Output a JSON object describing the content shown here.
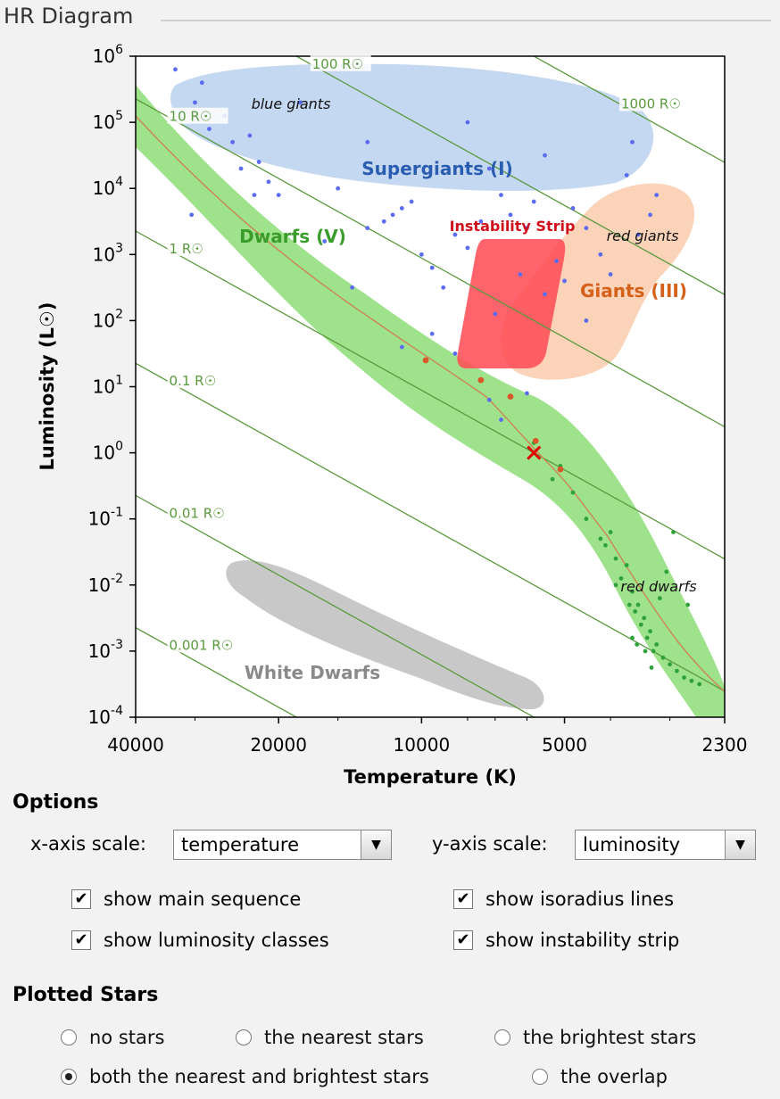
{
  "panel": {
    "title": "HR Diagram"
  },
  "chart_data": {
    "type": "scatter",
    "title": "",
    "xlabel": "Temperature (K)",
    "ylabel": "Luminosity (L☉)",
    "x_scale": "log-reversed",
    "xlim": [
      40000,
      2300
    ],
    "ylim_log10": [
      -4,
      6
    ],
    "x_ticks": [
      "40000",
      "20000",
      "10000",
      "5000",
      "2300"
    ],
    "y_ticks": [
      {
        "base": "10",
        "exp": "-4"
      },
      {
        "base": "10",
        "exp": "-3"
      },
      {
        "base": "10",
        "exp": "-2"
      },
      {
        "base": "10",
        "exp": "-1"
      },
      {
        "base": "10",
        "exp": "0"
      },
      {
        "base": "10",
        "exp": "1"
      },
      {
        "base": "10",
        "exp": "2"
      },
      {
        "base": "10",
        "exp": "3"
      },
      {
        "base": "10",
        "exp": "4"
      },
      {
        "base": "10",
        "exp": "5"
      },
      {
        "base": "10",
        "exp": "6"
      }
    ],
    "region_labels": {
      "supergiants": "Supergiants (I)",
      "giants": "Giants (III)",
      "dwarfs": "Dwarfs (V)",
      "white_dwarfs": "White Dwarfs",
      "instability": "Instability Strip",
      "blue_giants": "blue giants",
      "red_giants": "red giants",
      "red_dwarfs": "red dwarfs"
    },
    "isoradius_labels": [
      "1000 R☉",
      "100 R☉",
      "10 R☉",
      "1 R☉",
      "0.1 R☉",
      "0.01 R☉",
      "0.001 R☉"
    ],
    "isoradius_radii": [
      1000,
      100,
      10,
      1,
      0.1,
      0.01,
      0.001
    ],
    "sun": {
      "temperature": 5800,
      "luminosity": 1
    },
    "brightest_stars": [
      [
        33000,
        5.8
      ],
      [
        30000,
        5.3
      ],
      [
        28000,
        4.9
      ],
      [
        25000,
        4.7
      ],
      [
        23000,
        4.8
      ],
      [
        22000,
        4.4
      ],
      [
        21000,
        4.1
      ],
      [
        20000,
        3.9
      ],
      [
        15000,
        4.0
      ],
      [
        13000,
        3.4
      ],
      [
        12000,
        3.5
      ],
      [
        11500,
        3.6
      ],
      [
        11000,
        3.7
      ],
      [
        10500,
        3.8
      ],
      [
        10000,
        3.0
      ],
      [
        9500,
        2.8
      ],
      [
        9000,
        2.5
      ],
      [
        8500,
        3.3
      ],
      [
        8000,
        3.1
      ],
      [
        7500,
        3.5
      ],
      [
        7000,
        2.1
      ],
      [
        6500,
        3.6
      ],
      [
        6000,
        3.4
      ],
      [
        5800,
        3.8
      ],
      [
        5500,
        4.5
      ],
      [
        5200,
        2.9
      ],
      [
        5000,
        2.6
      ],
      [
        4800,
        3.7
      ],
      [
        4500,
        3.4
      ],
      [
        4200,
        3.0
      ],
      [
        4000,
        2.7
      ],
      [
        3700,
        4.2
      ],
      [
        3500,
        3.3
      ],
      [
        3300,
        3.6
      ],
      [
        3200,
        3.9
      ],
      [
        3600,
        4.7
      ],
      [
        4500,
        2.0
      ],
      [
        5500,
        2.4
      ],
      [
        6200,
        2.7
      ],
      [
        29000,
        5.6
      ],
      [
        26000,
        5.1
      ],
      [
        24000,
        4.3
      ],
      [
        18000,
        5.3
      ],
      [
        13000,
        4.7
      ],
      [
        8000,
        5.0
      ],
      [
        7200,
        4.3
      ],
      [
        6800,
        3.9
      ],
      [
        30500,
        3.6
      ],
      [
        22500,
        3.9
      ],
      [
        14000,
        2.5
      ],
      [
        11000,
        1.6
      ],
      [
        9500,
        1.8
      ],
      [
        8500,
        1.5
      ],
      [
        7200,
        0.8
      ],
      [
        6800,
        0.5
      ],
      [
        6000,
        0.9
      ],
      [
        16000,
        3.2
      ]
    ],
    "nearest_stars": [
      [
        5800,
        0.15
      ],
      [
        5300,
        -0.4
      ],
      [
        4500,
        -1.0
      ],
      [
        4200,
        -1.3
      ],
      [
        3900,
        -1.6
      ],
      [
        3800,
        -1.9
      ],
      [
        3600,
        -2.1
      ],
      [
        3500,
        -2.3
      ],
      [
        3400,
        -2.5
      ],
      [
        3300,
        -2.7
      ],
      [
        3200,
        -2.9
      ],
      [
        3100,
        -3.1
      ],
      [
        3000,
        -3.2
      ],
      [
        2900,
        -3.3
      ],
      [
        2800,
        -3.4
      ],
      [
        2700,
        -3.45
      ],
      [
        2600,
        -3.5
      ],
      [
        3700,
        -1.7
      ],
      [
        3550,
        -2.4
      ],
      [
        3450,
        -2.6
      ],
      [
        3350,
        -2.8
      ],
      [
        3250,
        -3.0
      ],
      [
        3150,
        -2.2
      ],
      [
        2950,
        -1.2
      ],
      [
        3050,
        -1.8
      ],
      [
        3600,
        -2.8
      ],
      [
        3900,
        -2.0
      ],
      [
        4100,
        -1.4
      ],
      [
        4800,
        -0.6
      ],
      [
        5100,
        -0.2
      ],
      [
        4000,
        -1.2
      ],
      [
        3650,
        -2.3
      ],
      [
        3520,
        -2.9
      ],
      [
        3380,
        -3.0
      ],
      [
        3280,
        -3.25
      ],
      [
        2750,
        -2.3
      ]
    ],
    "highlight_stars": [
      [
        9800,
        1.4
      ],
      [
        7500,
        1.1
      ],
      [
        6500,
        0.85
      ],
      [
        5750,
        0.18
      ],
      [
        5100,
        -0.25
      ]
    ]
  },
  "options": {
    "heading": "Options",
    "x_axis_label": "x-axis scale:",
    "x_axis_value": "temperature",
    "y_axis_label": "y-axis scale:",
    "y_axis_value": "luminosity",
    "checkboxes": [
      {
        "label": "show main sequence",
        "checked": true
      },
      {
        "label": "show isoradius lines",
        "checked": true
      },
      {
        "label": "show luminosity classes",
        "checked": true
      },
      {
        "label": "show instability strip",
        "checked": true
      }
    ]
  },
  "plotted": {
    "heading": "Plotted Stars",
    "radios": [
      {
        "label": "no stars",
        "selected": false
      },
      {
        "label": "the nearest stars",
        "selected": false
      },
      {
        "label": "the brightest stars",
        "selected": false
      },
      {
        "label": "both the nearest and brightest stars",
        "selected": true
      },
      {
        "label": "the overlap",
        "selected": false
      }
    ]
  },
  "colors": {
    "supergiants": "#c5d8f2",
    "giants": "#fbd3b9",
    "dwarfs": "#9fe28c",
    "white_dwarfs": "#c8c8c8",
    "instability": "#ff4d57",
    "isoradius": "#5a9a3d",
    "sun": "#e00000"
  }
}
